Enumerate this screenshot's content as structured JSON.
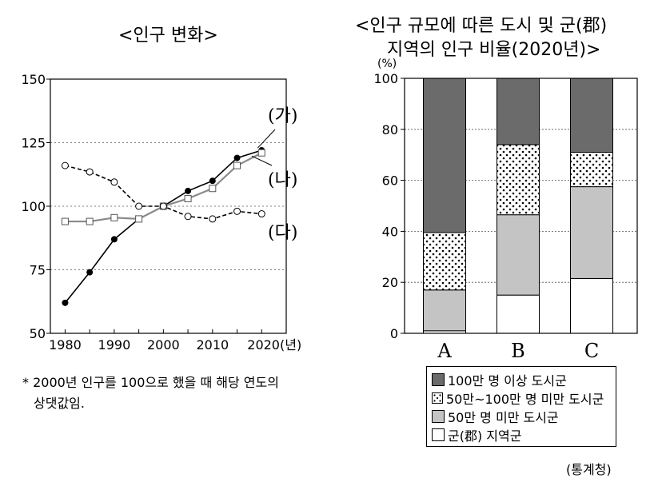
{
  "left_chart": {
    "title": "<인구 변화>",
    "footnote_line1": "* 2000년 인구를 100으로 했을 때 해당 연도의",
    "footnote_line2": "상댓값임."
  },
  "right_chart": {
    "title_line1": "<인구 규모에 따른 도시 및 군(郡)",
    "title_line2": "지역의 인구 비율(2020년)>",
    "source": "(통계청)"
  },
  "colors": {
    "dark_gray": "#6b6b6b",
    "light_gray": "#c4c4c4",
    "white": "#ffffff",
    "line_ga": "#000000",
    "line_na": "#8a8a8a"
  },
  "chart_data": [
    {
      "type": "line",
      "title": "<인구 변화>",
      "x": [
        1980,
        1985,
        1990,
        1995,
        2000,
        2005,
        2010,
        2015,
        2020
      ],
      "x_ticks": [
        "1980",
        "1990",
        "2000",
        "2010",
        "2020(년)"
      ],
      "ylim": [
        50,
        150
      ],
      "y_ticks": [
        "50",
        "75",
        "100",
        "125",
        "150"
      ],
      "grid": "horizontal dotted",
      "series": [
        {
          "name": "(가)",
          "marker": "filled-circle",
          "line": "solid-black",
          "values": [
            62,
            74,
            87,
            95,
            100,
            106,
            110,
            119,
            122
          ]
        },
        {
          "name": "(나)",
          "marker": "open-square",
          "line": "solid-gray",
          "values": [
            94,
            94,
            95.5,
            95,
            100,
            103,
            107,
            116,
            121
          ]
        },
        {
          "name": "(다)",
          "marker": "open-circle",
          "line": "dashed-black",
          "values": [
            116,
            113.5,
            109.5,
            100,
            100,
            96,
            95,
            98,
            97
          ]
        }
      ]
    },
    {
      "type": "bar",
      "stacked": true,
      "title": "<인구 규모에 따른 도시 및 군(郡) 지역의 인구 비율(2020년)>",
      "ylabel": "(%)",
      "ylim": [
        0,
        100
      ],
      "y_ticks": [
        "0",
        "20",
        "40",
        "60",
        "80",
        "100"
      ],
      "categories": [
        "A",
        "B",
        "C"
      ],
      "series": [
        {
          "name": "군(郡) 지역군",
          "fill": "white",
          "values": [
            1,
            15,
            21.5
          ]
        },
        {
          "name": "50만 명 미만 도시군",
          "fill": "light_gray",
          "values": [
            16,
            31.5,
            36
          ]
        },
        {
          "name": "50만~100만 명 미만 도시군",
          "fill": "dots",
          "values": [
            22.5,
            27.5,
            13.5
          ]
        },
        {
          "name": "100만 명 이상 도시군",
          "fill": "dark_gray",
          "values": [
            60.5,
            26,
            29
          ]
        }
      ],
      "legend": [
        "100만 명 이상 도시군",
        "50만~100만 명 미만 도시군",
        "50만 명 미만 도시군",
        "군(郡) 지역군"
      ],
      "source": "(통계청)"
    }
  ]
}
